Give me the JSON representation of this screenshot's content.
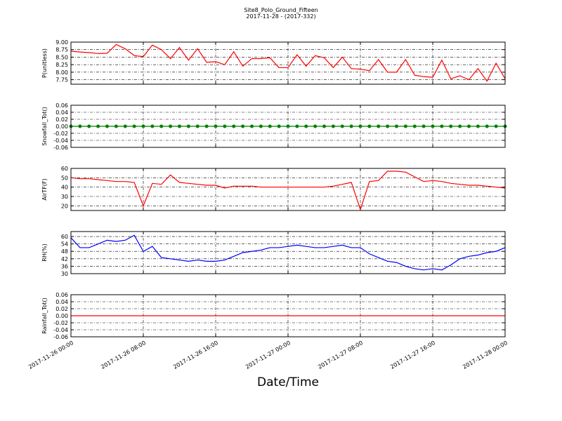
{
  "title": "Site8_Polo_Ground_Fifteen",
  "subtitle": "2017-11-28 - (2017-332)",
  "xlabel": "Date/Time",
  "chart_data": [
    {
      "type": "line",
      "ylabel": "P(unitless)",
      "color": "#ff0000",
      "grid": true,
      "x": [
        "2017-11-26 00:00",
        "2017-11-26 01:00",
        "2017-11-26 02:00",
        "2017-11-26 03:00",
        "2017-11-26 04:00",
        "2017-11-26 05:00",
        "2017-11-26 06:00",
        "2017-11-26 07:00",
        "2017-11-26 08:00",
        "2017-11-26 09:00",
        "2017-11-26 10:00",
        "2017-11-26 11:00",
        "2017-11-26 12:00",
        "2017-11-26 13:00",
        "2017-11-26 14:00",
        "2017-11-26 15:00",
        "2017-11-26 16:00",
        "2017-11-26 17:00",
        "2017-11-26 18:00",
        "2017-11-26 19:00",
        "2017-11-26 20:00",
        "2017-11-26 21:00",
        "2017-11-26 22:00",
        "2017-11-26 23:00",
        "2017-11-27 00:00",
        "2017-11-27 01:00",
        "2017-11-27 02:00",
        "2017-11-27 03:00",
        "2017-11-27 04:00",
        "2017-11-27 05:00",
        "2017-11-27 06:00",
        "2017-11-27 07:00",
        "2017-11-27 08:00",
        "2017-11-27 09:00",
        "2017-11-27 10:00",
        "2017-11-27 11:00",
        "2017-11-27 12:00",
        "2017-11-27 13:00",
        "2017-11-27 14:00",
        "2017-11-27 15:00",
        "2017-11-27 16:00",
        "2017-11-27 17:00",
        "2017-11-27 18:00",
        "2017-11-27 19:00",
        "2017-11-27 20:00",
        "2017-11-27 21:00",
        "2017-11-27 22:00",
        "2017-11-27 23:00",
        "2017-11-28 00:00"
      ],
      "values": [
        8.7,
        8.67,
        8.65,
        8.62,
        8.63,
        8.92,
        8.78,
        8.55,
        8.52,
        8.9,
        8.75,
        8.45,
        8.82,
        8.4,
        8.78,
        8.33,
        8.35,
        8.25,
        8.68,
        8.2,
        8.45,
        8.45,
        8.48,
        8.15,
        8.15,
        8.58,
        8.2,
        8.55,
        8.48,
        8.15,
        8.5,
        8.12,
        8.1,
        8.05,
        8.42,
        8.0,
        8.0,
        8.42,
        7.9,
        7.85,
        7.83,
        8.4,
        7.78,
        7.88,
        7.75,
        8.12,
        7.7,
        8.3,
        7.78
      ],
      "xlim": [
        "2017-11-26 00:00",
        "2017-11-28 00:00"
      ],
      "xticks": [
        "2017-11-26 00:00",
        "2017-11-26 08:00",
        "2017-11-26 16:00",
        "2017-11-27 00:00",
        "2017-11-27 08:00",
        "2017-11-27 16:00",
        "2017-11-28 00:00"
      ],
      "ylim": [
        7.6,
        9.0
      ],
      "yticks": [
        {
          "value": 7.75,
          "label": "7.75"
        },
        {
          "value": 8,
          "label": "8.00"
        },
        {
          "value": 8.25,
          "label": "8.25"
        },
        {
          "value": 8.5,
          "label": "8.50"
        },
        {
          "value": 8.75,
          "label": "8.75"
        },
        {
          "value": 9,
          "label": "9.00"
        }
      ]
    },
    {
      "type": "line",
      "ylabel": "Snowfall_Tot()",
      "color": "#008000",
      "marker": "o",
      "grid": true,
      "x": [
        "2017-11-26 00:00",
        "2017-11-26 01:00",
        "2017-11-26 02:00",
        "2017-11-26 03:00",
        "2017-11-26 04:00",
        "2017-11-26 05:00",
        "2017-11-26 06:00",
        "2017-11-26 07:00",
        "2017-11-26 08:00",
        "2017-11-26 09:00",
        "2017-11-26 10:00",
        "2017-11-26 11:00",
        "2017-11-26 12:00",
        "2017-11-26 13:00",
        "2017-11-26 14:00",
        "2017-11-26 15:00",
        "2017-11-26 16:00",
        "2017-11-26 17:00",
        "2017-11-26 18:00",
        "2017-11-26 19:00",
        "2017-11-26 20:00",
        "2017-11-26 21:00",
        "2017-11-26 22:00",
        "2017-11-26 23:00",
        "2017-11-27 00:00",
        "2017-11-27 01:00",
        "2017-11-27 02:00",
        "2017-11-27 03:00",
        "2017-11-27 04:00",
        "2017-11-27 05:00",
        "2017-11-27 06:00",
        "2017-11-27 07:00",
        "2017-11-27 08:00",
        "2017-11-27 09:00",
        "2017-11-27 10:00",
        "2017-11-27 11:00",
        "2017-11-27 12:00",
        "2017-11-27 13:00",
        "2017-11-27 14:00",
        "2017-11-27 15:00",
        "2017-11-27 16:00",
        "2017-11-27 17:00",
        "2017-11-27 18:00",
        "2017-11-27 19:00",
        "2017-11-27 20:00",
        "2017-11-27 21:00",
        "2017-11-27 22:00",
        "2017-11-27 23:00",
        "2017-11-28 00:00"
      ],
      "values": [
        0,
        0,
        0,
        0,
        0,
        0,
        0,
        0,
        0,
        0,
        0,
        0,
        0,
        0,
        0,
        0,
        0,
        0,
        0,
        0,
        0,
        0,
        0,
        0,
        0,
        0,
        0,
        0,
        0,
        0,
        0,
        0,
        0,
        0,
        0,
        0,
        0,
        0,
        0,
        0,
        0,
        0,
        0,
        0,
        0,
        0,
        0,
        0,
        0
      ],
      "xlim": [
        "2017-11-26 00:00",
        "2017-11-28 00:00"
      ],
      "xticks": [
        "2017-11-26 00:00",
        "2017-11-26 08:00",
        "2017-11-26 16:00",
        "2017-11-27 00:00",
        "2017-11-27 08:00",
        "2017-11-27 16:00",
        "2017-11-28 00:00"
      ],
      "ylim": [
        -0.06,
        0.06
      ],
      "yticks": [
        {
          "value": -0.06,
          "label": "-0.06"
        },
        {
          "value": -0.04,
          "label": "-0.04"
        },
        {
          "value": -0.02,
          "label": "-0.02"
        },
        {
          "value": 0,
          "label": "0.00"
        },
        {
          "value": 0.02,
          "label": "0.02"
        },
        {
          "value": 0.04,
          "label": "0.04"
        },
        {
          "value": 0.06,
          "label": "0.06"
        }
      ]
    },
    {
      "type": "line",
      "ylabel": "AirTF(F)",
      "color": "#ff0000",
      "grid": true,
      "x": [
        "2017-11-26 00:00",
        "2017-11-26 01:00",
        "2017-11-26 02:00",
        "2017-11-26 03:00",
        "2017-11-26 04:00",
        "2017-11-26 05:00",
        "2017-11-26 06:00",
        "2017-11-26 07:00",
        "2017-11-26 08:00",
        "2017-11-26 09:00",
        "2017-11-26 10:00",
        "2017-11-26 11:00",
        "2017-11-26 12:00",
        "2017-11-26 13:00",
        "2017-11-26 14:00",
        "2017-11-26 15:00",
        "2017-11-26 16:00",
        "2017-11-26 17:00",
        "2017-11-26 18:00",
        "2017-11-26 19:00",
        "2017-11-26 20:00",
        "2017-11-26 21:00",
        "2017-11-26 22:00",
        "2017-11-26 23:00",
        "2017-11-27 00:00",
        "2017-11-27 01:00",
        "2017-11-27 02:00",
        "2017-11-27 03:00",
        "2017-11-27 04:00",
        "2017-11-27 05:00",
        "2017-11-27 06:00",
        "2017-11-27 07:00",
        "2017-11-27 08:00",
        "2017-11-27 09:00",
        "2017-11-27 10:00",
        "2017-11-27 11:00",
        "2017-11-27 12:00",
        "2017-11-27 13:00",
        "2017-11-27 14:00",
        "2017-11-27 15:00",
        "2017-11-27 16:00",
        "2017-11-27 17:00",
        "2017-11-27 18:00",
        "2017-11-27 19:00",
        "2017-11-27 20:00",
        "2017-11-27 21:00",
        "2017-11-27 22:00",
        "2017-11-27 23:00",
        "2017-11-28 00:00"
      ],
      "values": [
        50,
        49,
        49,
        48,
        47,
        46,
        46,
        45,
        20,
        44,
        43,
        53,
        45,
        44,
        43,
        42,
        42,
        39,
        41,
        41,
        41,
        40,
        40,
        40,
        40,
        40,
        40,
        40,
        40,
        41,
        43,
        45,
        16,
        46,
        47,
        57,
        57,
        56,
        51,
        46,
        47,
        46,
        44,
        43,
        42,
        42,
        41,
        40,
        39
      ],
      "xlim": [
        "2017-11-26 00:00",
        "2017-11-28 00:00"
      ],
      "xticks": [
        "2017-11-26 00:00",
        "2017-11-26 08:00",
        "2017-11-26 16:00",
        "2017-11-27 00:00",
        "2017-11-27 08:00",
        "2017-11-27 16:00",
        "2017-11-28 00:00"
      ],
      "ylim": [
        15,
        60
      ],
      "yticks": [
        20,
        30,
        40,
        50,
        60
      ]
    },
    {
      "type": "line",
      "ylabel": "RH(%)",
      "color": "#0000ff",
      "grid": true,
      "x": [
        "2017-11-26 00:00",
        "2017-11-26 01:00",
        "2017-11-26 02:00",
        "2017-11-26 03:00",
        "2017-11-26 04:00",
        "2017-11-26 05:00",
        "2017-11-26 06:00",
        "2017-11-26 07:00",
        "2017-11-26 08:00",
        "2017-11-26 09:00",
        "2017-11-26 10:00",
        "2017-11-26 11:00",
        "2017-11-26 12:00",
        "2017-11-26 13:00",
        "2017-11-26 14:00",
        "2017-11-26 15:00",
        "2017-11-26 16:00",
        "2017-11-26 17:00",
        "2017-11-26 18:00",
        "2017-11-26 19:00",
        "2017-11-26 20:00",
        "2017-11-26 21:00",
        "2017-11-26 22:00",
        "2017-11-26 23:00",
        "2017-11-27 00:00",
        "2017-11-27 01:00",
        "2017-11-27 02:00",
        "2017-11-27 03:00",
        "2017-11-27 04:00",
        "2017-11-27 05:00",
        "2017-11-27 06:00",
        "2017-11-27 07:00",
        "2017-11-27 08:00",
        "2017-11-27 09:00",
        "2017-11-27 10:00",
        "2017-11-27 11:00",
        "2017-11-27 12:00",
        "2017-11-27 13:00",
        "2017-11-27 14:00",
        "2017-11-27 15:00",
        "2017-11-27 16:00",
        "2017-11-27 17:00",
        "2017-11-27 18:00",
        "2017-11-27 19:00",
        "2017-11-27 20:00",
        "2017-11-27 21:00",
        "2017-11-27 22:00",
        "2017-11-27 23:00",
        "2017-11-28 00:00"
      ],
      "values": [
        59,
        51,
        51,
        54,
        57,
        56,
        57,
        61,
        48,
        52,
        43,
        42,
        41,
        40,
        41,
        40,
        40,
        41,
        44,
        47,
        48,
        49,
        51,
        51,
        52,
        53,
        52,
        51,
        51,
        52,
        53,
        51,
        51,
        46,
        43,
        40,
        39,
        36,
        34,
        33,
        34,
        33,
        37,
        42,
        44,
        45,
        47,
        48,
        51
      ],
      "xlim": [
        "2017-11-26 00:00",
        "2017-11-28 00:00"
      ],
      "xticks": [
        "2017-11-26 00:00",
        "2017-11-26 08:00",
        "2017-11-26 16:00",
        "2017-11-27 00:00",
        "2017-11-27 08:00",
        "2017-11-27 16:00",
        "2017-11-28 00:00"
      ],
      "ylim": [
        30,
        64
      ],
      "yticks": [
        30,
        36,
        42,
        48,
        54,
        60
      ]
    },
    {
      "type": "line",
      "ylabel": "Rainfall_Tot()",
      "color": "#ff0000",
      "grid": true,
      "x": [
        "2017-11-26 00:00",
        "2017-11-26 01:00",
        "2017-11-26 02:00",
        "2017-11-26 03:00",
        "2017-11-26 04:00",
        "2017-11-26 05:00",
        "2017-11-26 06:00",
        "2017-11-26 07:00",
        "2017-11-26 08:00",
        "2017-11-26 09:00",
        "2017-11-26 10:00",
        "2017-11-26 11:00",
        "2017-11-26 12:00",
        "2017-11-26 13:00",
        "2017-11-26 14:00",
        "2017-11-26 15:00",
        "2017-11-26 16:00",
        "2017-11-26 17:00",
        "2017-11-26 18:00",
        "2017-11-26 19:00",
        "2017-11-26 20:00",
        "2017-11-26 21:00",
        "2017-11-26 22:00",
        "2017-11-26 23:00",
        "2017-11-27 00:00",
        "2017-11-27 01:00",
        "2017-11-27 02:00",
        "2017-11-27 03:00",
        "2017-11-27 04:00",
        "2017-11-27 05:00",
        "2017-11-27 06:00",
        "2017-11-27 07:00",
        "2017-11-27 08:00",
        "2017-11-27 09:00",
        "2017-11-27 10:00",
        "2017-11-27 11:00",
        "2017-11-27 12:00",
        "2017-11-27 13:00",
        "2017-11-27 14:00",
        "2017-11-27 15:00",
        "2017-11-27 16:00",
        "2017-11-27 17:00",
        "2017-11-27 18:00",
        "2017-11-27 19:00",
        "2017-11-27 20:00",
        "2017-11-27 21:00",
        "2017-11-27 22:00",
        "2017-11-27 23:00",
        "2017-11-28 00:00"
      ],
      "values": [
        0,
        0,
        0,
        0,
        0,
        0,
        0,
        0,
        0,
        0,
        0,
        0,
        0,
        0,
        0,
        0,
        0,
        0,
        0,
        0,
        0,
        0,
        0,
        0,
        0,
        0,
        0,
        0,
        0,
        0,
        0,
        0,
        0,
        0,
        0,
        0,
        0,
        0,
        0,
        0,
        0,
        0,
        0,
        0,
        0,
        0,
        0,
        0,
        0
      ],
      "xlim": [
        "2017-11-26 00:00",
        "2017-11-28 00:00"
      ],
      "xticks": [
        "2017-11-26 00:00",
        "2017-11-26 08:00",
        "2017-11-26 16:00",
        "2017-11-27 00:00",
        "2017-11-27 08:00",
        "2017-11-27 16:00",
        "2017-11-28 00:00"
      ],
      "ylim": [
        -0.06,
        0.06
      ],
      "yticks": [
        {
          "value": -0.06,
          "label": "-0.06"
        },
        {
          "value": -0.04,
          "label": "-0.04"
        },
        {
          "value": -0.02,
          "label": "-0.02"
        },
        {
          "value": 0,
          "label": "0.00"
        },
        {
          "value": 0.02,
          "label": "0.02"
        },
        {
          "value": 0.04,
          "label": "0.04"
        },
        {
          "value": 0.06,
          "label": "0.06"
        }
      ]
    }
  ]
}
